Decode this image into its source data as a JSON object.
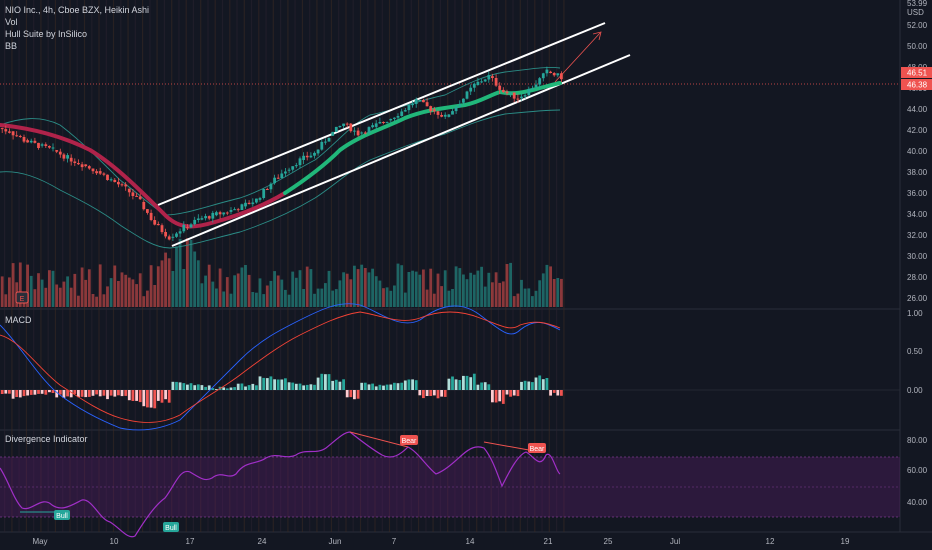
{
  "header": {
    "symbol_line": "NIO Inc., 4h, Cboe BZX, Heikin Ashi",
    "indicators": [
      "Vol",
      "Hull Suite by InSilico",
      "BB"
    ],
    "currency": "USD",
    "top_partial_label": "53.99"
  },
  "colors": {
    "background": "#131722",
    "bull": "#26a69a",
    "bear": "#ef5350",
    "hull_bull": "#21b77a",
    "hull_bear": "#b0234a",
    "bb": "#2b8c86",
    "channel": "#ffffff",
    "rsi_line": "#a02fc7",
    "rsi_band": "#5b1e6e",
    "macd_line": "#2962ff",
    "signal_line": "#f44336",
    "price_badge": "#ef5350"
  },
  "price_pane": {
    "axis_labels": [
      "52.00",
      "50.00",
      "48.00",
      "46.00",
      "44.00",
      "42.00",
      "40.00",
      "38.00",
      "36.00",
      "34.00",
      "32.00",
      "30.00",
      "28.00",
      "26.00"
    ],
    "last_price_labels": [
      "46.51",
      "46.38"
    ],
    "earnings_marker": "E"
  },
  "macd_pane": {
    "title": "MACD",
    "axis_labels": [
      "1.00",
      "0.50",
      "0.00"
    ]
  },
  "divergence_pane": {
    "title": "Divergence Indicator",
    "axis_labels": [
      "80.00",
      "60.00",
      "40.00"
    ],
    "signals": [
      "Bear",
      "Bear",
      "Bull",
      "Bull"
    ]
  },
  "time_axis": [
    "May",
    "10",
    "17",
    "24",
    "Jun",
    "7",
    "14",
    "21",
    "25",
    "Jul",
    "12",
    "19"
  ],
  "chart_data": {
    "type": "candlestick",
    "x": [
      "Apr 28",
      "Apr 29",
      "Apr 30",
      "May 3",
      "May 4",
      "May 5",
      "May 6",
      "May 7",
      "May 10",
      "May 11",
      "May 12",
      "May 13",
      "May 14",
      "May 17",
      "May 18",
      "May 19",
      "May 20",
      "May 21",
      "May 24",
      "May 25",
      "May 26",
      "May 27",
      "May 28",
      "Jun 1",
      "Jun 2",
      "Jun 3",
      "Jun 4",
      "Jun 7",
      "Jun 8",
      "Jun 9",
      "Jun 10",
      "Jun 11",
      "Jun 14",
      "Jun 15",
      "Jun 16",
      "Jun 17",
      "Jun 18",
      "Jun 21",
      "Jun 22"
    ],
    "series": [
      {
        "values": {
          "close": [
            41.6,
            40.8,
            40.3,
            39.9,
            39.2,
            38.6,
            38.0,
            37.2,
            36.4,
            35.2,
            33.2,
            32.0,
            32.9,
            33.6,
            34.0,
            34.3,
            34.8,
            35.4,
            36.9,
            38.1,
            39.0,
            39.6,
            41.2,
            42.3,
            41.4,
            42.0,
            42.6,
            43.4,
            44.4,
            43.6,
            42.9,
            44.2,
            45.8,
            46.6,
            45.2,
            44.6,
            45.6,
            47.0,
            46.5
          ]
        }
      }
    ],
    "ylim": [
      25.5,
      53.5
    ]
  }
}
